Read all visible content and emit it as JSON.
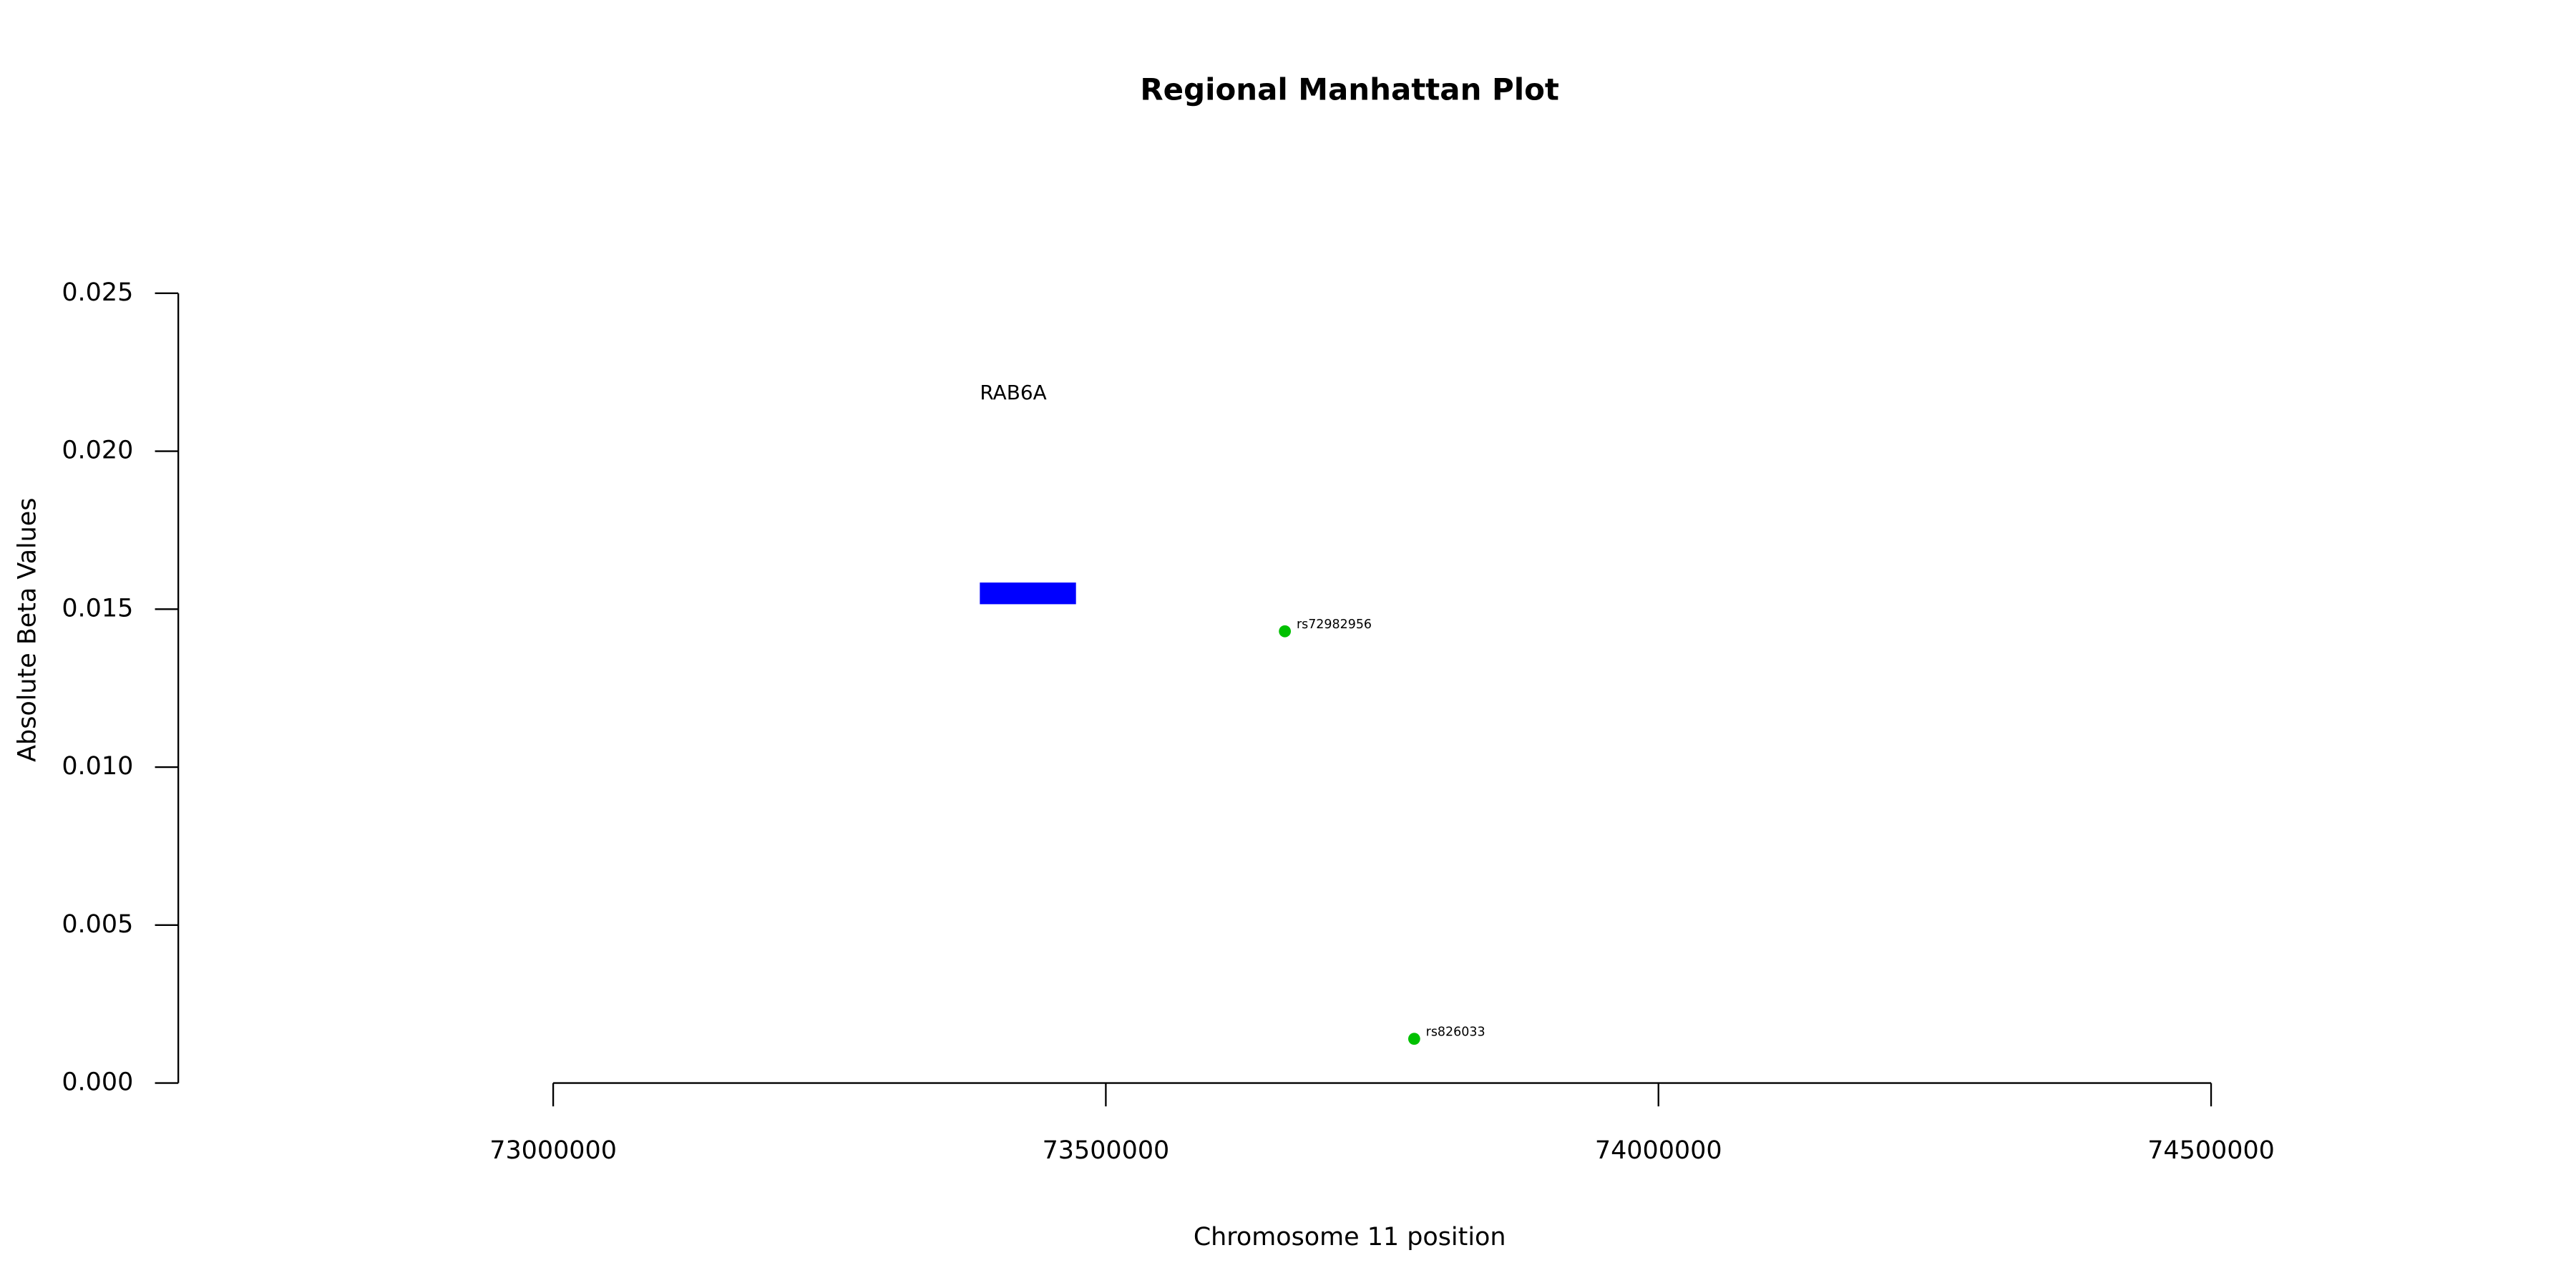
{
  "chart_data": {
    "type": "scatter",
    "title": "Regional Manhattan Plot",
    "x_label": "Chromosome 11 position",
    "y_label": "Absolute Beta Values",
    "xlim": [
      73000000,
      74500000
    ],
    "ylim": [
      0,
      0.025
    ],
    "xticks": [
      73000000,
      73500000,
      74000000,
      74500000
    ],
    "yticks": [
      {
        "value": 0,
        "label": "0.000"
      },
      {
        "value": 0.005,
        "label": "0.005"
      },
      {
        "value": 0.01,
        "label": "0.010"
      },
      {
        "value": 0.015,
        "label": "0.015"
      },
      {
        "value": 0.02,
        "label": "0.020"
      },
      {
        "value": 0.025,
        "label": "0.025"
      }
    ],
    "series": [
      {
        "color": "#00c000",
        "x": [
          73662000,
          73779000
        ],
        "values": [
          0.0143,
          0.0014
        ],
        "labels": [
          "rs72982956",
          "rs826033"
        ]
      }
    ],
    "genes": [
      {
        "name": "RAB6A",
        "start": 73386000,
        "end": 73473000,
        "y": 0.0155,
        "color": "#0000ff"
      }
    ]
  }
}
